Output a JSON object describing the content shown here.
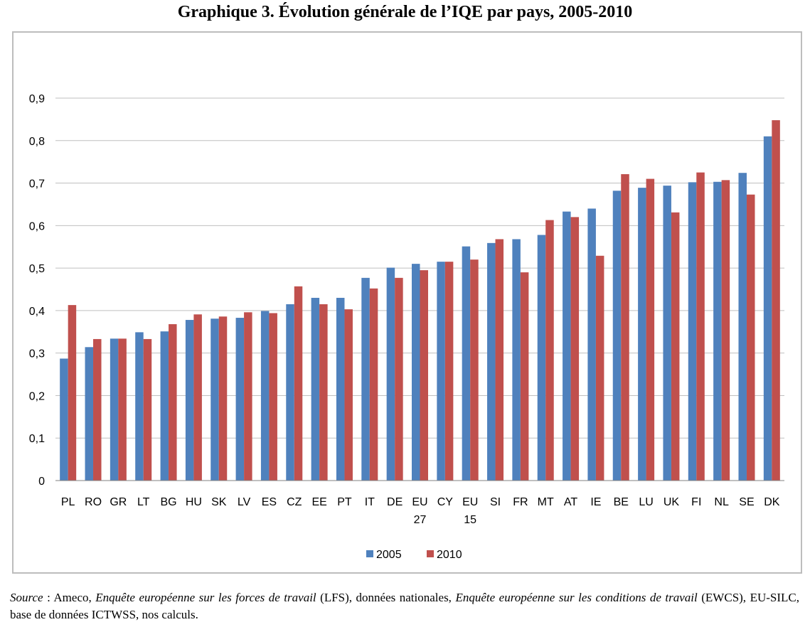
{
  "title": "Graphique 3. Évolution générale de l’IQE par pays, 2005-2010",
  "source": {
    "label": "Source",
    "sep1": " : Ameco, ",
    "lfs_name": "Enquête européenne sur les forces de travail",
    "sep2": " (LFS), données nationales, ",
    "ewcs_name": "Enquête européenne sur les conditions de travail",
    "sep3": " (EWCS), EU-SILC, base de données ICTWSS, nos calculs."
  },
  "colors": {
    "s2005": "#4f81bd",
    "s2010": "#c0504d",
    "grid": "#bfbfbf",
    "axis": "#000000"
  },
  "chart_data": {
    "type": "bar",
    "categories": [
      "PL",
      "RO",
      "GR",
      "LT",
      "BG",
      "HU",
      "SK",
      "LV",
      "ES",
      "CZ",
      "EE",
      "PT",
      "IT",
      "DE",
      "EU 27",
      "CY",
      "EU 15",
      "SI",
      "FR",
      "MT",
      "AT",
      "IE",
      "BE",
      "LU",
      "UK",
      "FI",
      "NL",
      "SE",
      "DK"
    ],
    "series": [
      {
        "name": "2005",
        "values": [
          0.287,
          0.314,
          0.334,
          0.349,
          0.351,
          0.378,
          0.381,
          0.383,
          0.399,
          0.415,
          0.43,
          0.43,
          0.477,
          0.501,
          0.51,
          0.515,
          0.551,
          0.559,
          0.568,
          0.578,
          0.633,
          0.64,
          0.682,
          0.689,
          0.694,
          0.702,
          0.703,
          0.724,
          0.81
        ]
      },
      {
        "name": "2010",
        "values": [
          0.413,
          0.333,
          0.334,
          0.333,
          0.368,
          0.391,
          0.386,
          0.396,
          0.394,
          0.457,
          0.415,
          0.403,
          0.452,
          0.477,
          0.495,
          0.515,
          0.52,
          0.568,
          0.49,
          0.613,
          0.62,
          0.529,
          0.721,
          0.71,
          0.631,
          0.725,
          0.707,
          0.673,
          0.848
        ]
      }
    ],
    "yticks": [
      "0",
      "0,1",
      "0,2",
      "0,3",
      "0,4",
      "0,5",
      "0,6",
      "0,7",
      "0,8",
      "0,9"
    ],
    "ylim": [
      0,
      0.9
    ],
    "grid": true,
    "legend_position": "bottom"
  }
}
